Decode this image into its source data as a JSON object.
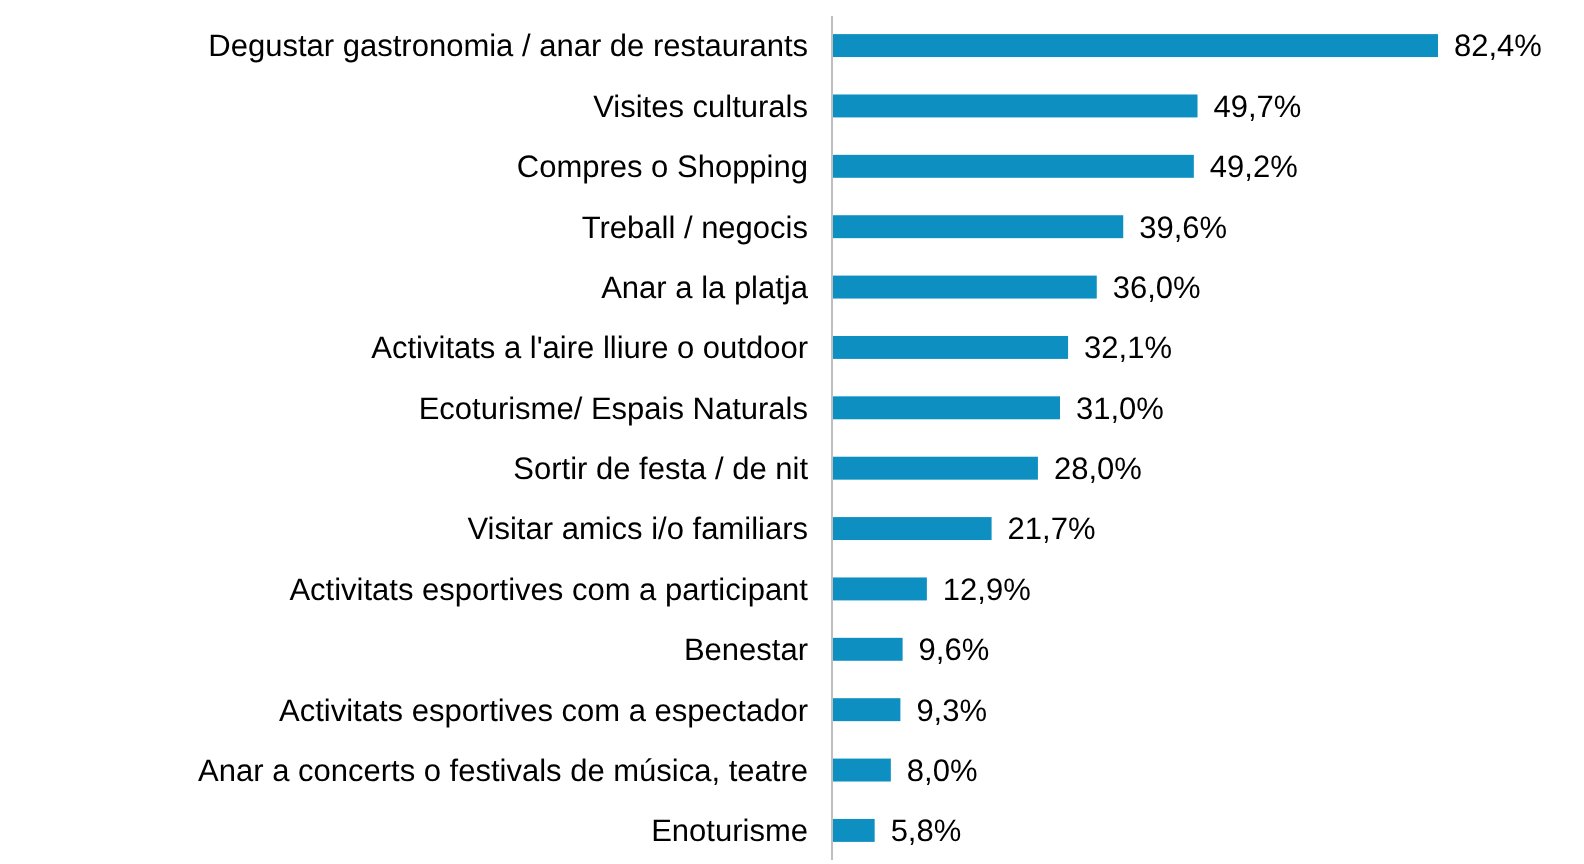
{
  "chart_data": {
    "type": "bar",
    "orientation": "horizontal",
    "categories": [
      "Degustar gastronomia / anar de restaurants",
      "Visites culturals",
      "Compres o Shopping",
      "Treball / negocis",
      "Anar a la platja",
      "Activitats a l'aire lliure o outdoor",
      "Ecoturisme/ Espais Naturals",
      "Sortir de festa / de nit",
      "Visitar amics i/o familiars",
      "Activitats esportives com a participant",
      "Benestar",
      "Activitats esportives com a espectador",
      "Anar a concerts o festivals de música, teatre",
      "Enoturisme"
    ],
    "values": [
      82.4,
      49.7,
      49.2,
      39.6,
      36.0,
      32.1,
      31.0,
      28.0,
      21.7,
      12.9,
      9.6,
      9.3,
      8.0,
      5.8
    ],
    "value_labels": [
      "82,4%",
      "49,7%",
      "49,2%",
      "39,6%",
      "36,0%",
      "32,1%",
      "31,0%",
      "28,0%",
      "21,7%",
      "12,9%",
      "9,6%",
      "9,3%",
      "8,0%",
      "5,8%"
    ],
    "color": "#0e8fc1"
  }
}
